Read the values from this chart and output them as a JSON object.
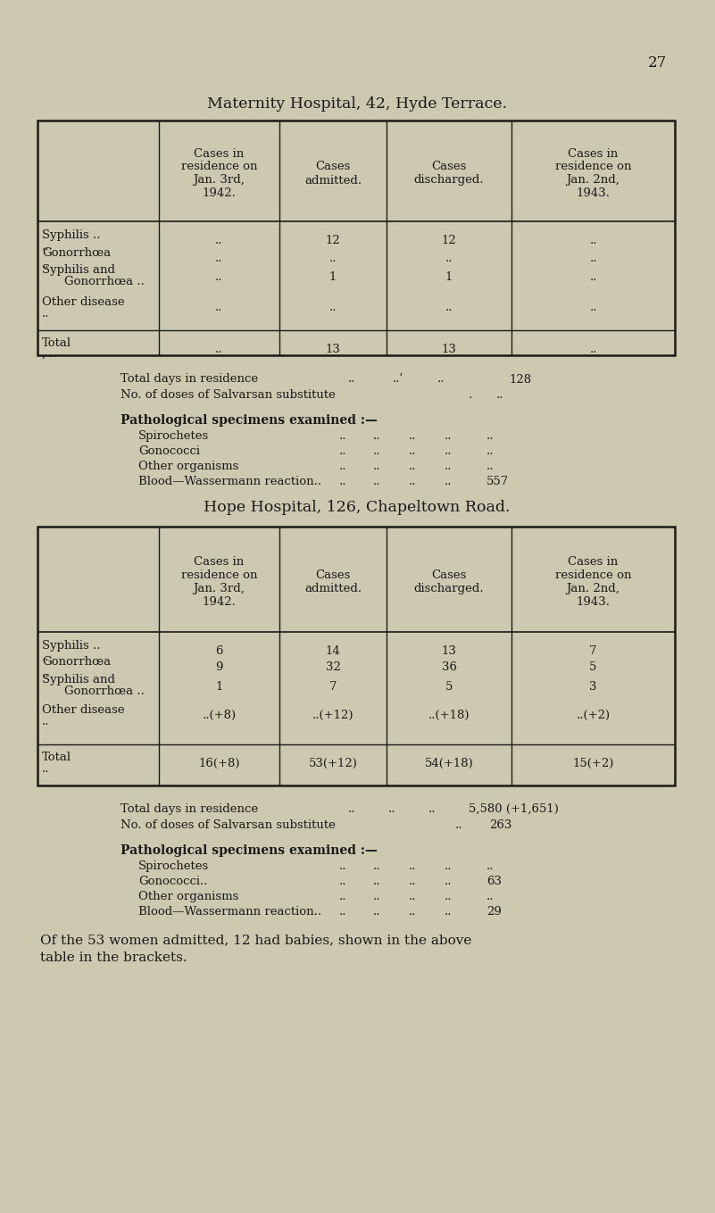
{
  "bg_color": "#cdc9b0",
  "text_color": "#1a1a1a",
  "page_number": "27",
  "title1": "Maternity Hospital, 42, Hyde Terrace.",
  "title2": "Hope Hospital, 126, Chapeltown Road.",
  "col_headers": [
    "Cases in\nresidence on\nJan. 3rd,\n1942.",
    "Cases\nadmitted.",
    "Cases\ndischarged.",
    "Cases in\nresidence on\nJan. 2nd,\n1943."
  ],
  "mat_rows": [
    [
      "Syphilis ..  ..",
      "..",
      "12",
      "12",
      ".."
    ],
    [
      "Gonorrhœa  ..",
      "..",
      "..",
      "..",
      ".."
    ],
    [
      "Syphilis and\n    Gonorrhœa ..",
      "..",
      "1",
      "1",
      ".."
    ],
    [
      "Other disease  ..",
      "..",
      "..",
      "..",
      ".."
    ]
  ],
  "mat_total": [
    "Total    ,..",
    "..",
    "13",
    "13",
    ".."
  ],
  "hope_rows": [
    [
      "Syphilis ..  ..",
      "6",
      "14",
      "13",
      "7"
    ],
    [
      "Gonorrhœa  ..",
      "9",
      "32",
      "36",
      "5"
    ],
    [
      "Syphilis and\n    Gonorrhœa ..",
      "1",
      "7",
      "5",
      "3"
    ],
    [
      "Other disease  ..",
      "..(+8)",
      "..(+12)",
      "..(+18)",
      "..(+2)"
    ]
  ],
  "hope_total": [
    "Total  ..",
    "16(+8)",
    "53(+12)",
    "54(+18)",
    "15(+2)"
  ]
}
